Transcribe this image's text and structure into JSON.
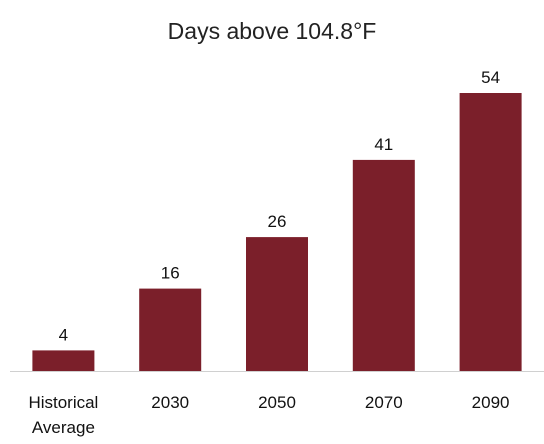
{
  "chart_data": {
    "type": "bar",
    "title": "Days above 104.8°F",
    "categories": [
      "Historical Average",
      "2030",
      "2050",
      "2070",
      "2090"
    ],
    "category_lines": [
      [
        "Historical",
        "Average"
      ],
      [
        "2030"
      ],
      [
        "2050"
      ],
      [
        "2070"
      ],
      [
        "2090"
      ]
    ],
    "values": [
      4,
      16,
      26,
      41,
      54
    ],
    "value_labels": [
      "4",
      "16",
      "26",
      "41",
      "54"
    ],
    "xlabel": "",
    "ylabel": "",
    "ylim": [
      0,
      60
    ],
    "grid": false,
    "legend": "none",
    "bar_color": "#7b1f2a",
    "axis_color": "#d0d0d0"
  }
}
